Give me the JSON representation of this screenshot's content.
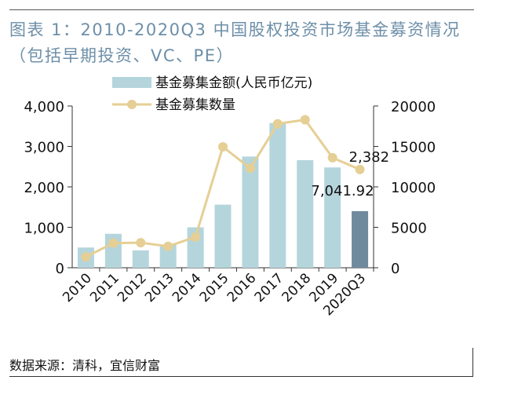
{
  "header": {
    "title": "图表 1：2010-2020Q3 中国股权投资市场基金募资情况（包括早期投资、VC、PE）"
  },
  "footer": {
    "source": "数据来源：清科，宜信财富"
  },
  "colors": {
    "bar": "#b5d5dc",
    "bar_highlight": "#6f8a9c",
    "line": "#e5cf94",
    "title": "#6d8fa8",
    "axis": "#333333"
  },
  "chart_data": {
    "type": "bar",
    "categories": [
      "2010",
      "2011",
      "2012",
      "2013",
      "2014",
      "2015",
      "2016",
      "2017",
      "2018",
      "2019",
      "2020Q3"
    ],
    "series": [
      {
        "name": "基金募集金额(人民币亿元)",
        "type": "bar",
        "axis": "left",
        "values": [
          500,
          840,
          430,
          570,
          1000,
          1560,
          2750,
          3580,
          2660,
          2480,
          1400
        ]
      },
      {
        "name": "基金募集数量",
        "type": "line",
        "axis": "right",
        "values": [
          1350,
          3050,
          3100,
          2650,
          3800,
          14950,
          12300,
          17800,
          18300,
          13600,
          12150
        ]
      }
    ],
    "ylim_left": [
      0,
      4000
    ],
    "yticks_left": [
      "0",
      "1,000",
      "2,000",
      "3,000",
      "4,000"
    ],
    "ylim_right": [
      0,
      20000
    ],
    "yticks_right": [
      "0",
      "5000",
      "10000",
      "15000",
      "20000"
    ],
    "data_labels": [
      "2,382",
      "7,041.92"
    ],
    "highlight_last_bar": true,
    "legend_position": "top",
    "grid": false
  }
}
